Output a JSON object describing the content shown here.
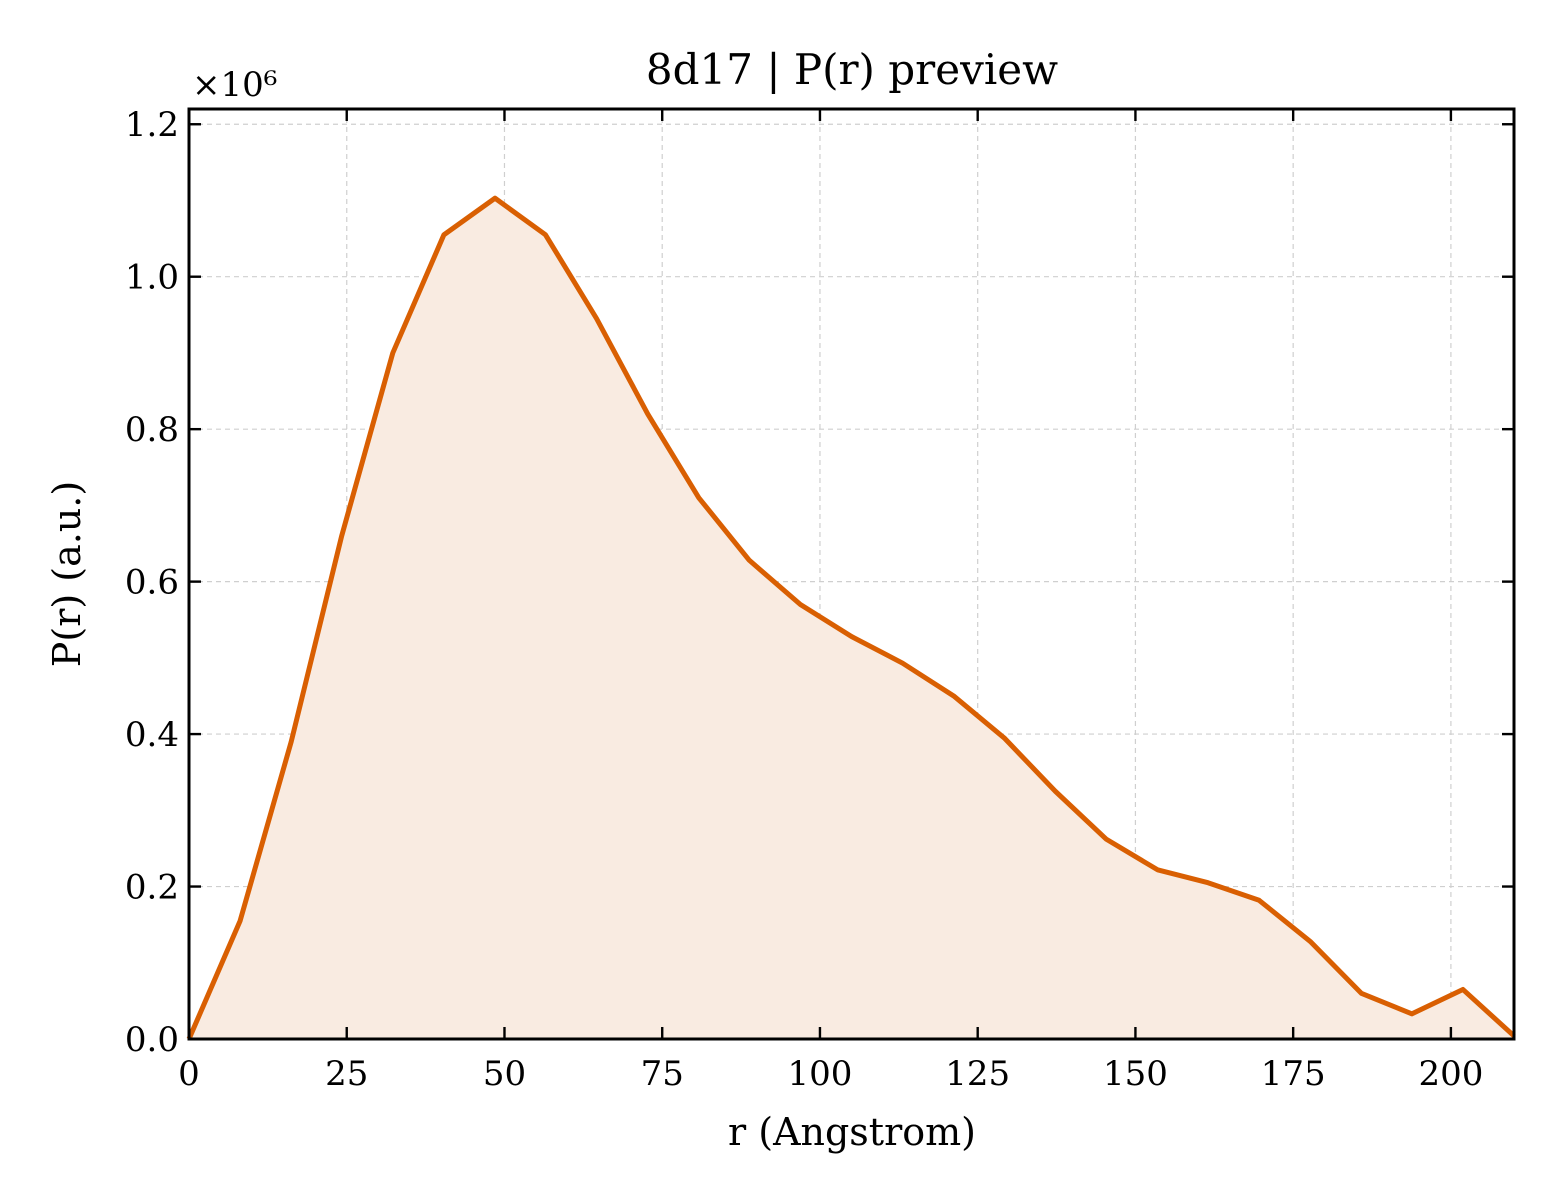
{
  "chart_data": {
    "type": "area",
    "title": "8d17 | P(r) preview",
    "xlabel": "r (Angstrom)",
    "ylabel": "P(r) (a.u.)",
    "y_multiplier_label": "×10⁶",
    "xlim": [
      0,
      210
    ],
    "ylim": [
      0,
      1.22
    ],
    "xticks": [
      0,
      25,
      50,
      75,
      100,
      125,
      150,
      175,
      200
    ],
    "yticks": [
      0.0,
      0.2,
      0.4,
      0.6,
      0.8,
      1.0,
      1.2
    ],
    "xtick_labels": [
      "0",
      "25",
      "50",
      "75",
      "100",
      "125",
      "150",
      "175",
      "200"
    ],
    "ytick_labels": [
      "0.0",
      "0.2",
      "0.4",
      "0.6",
      "0.8",
      "1.0",
      "1.2"
    ],
    "grid": true,
    "colors": {
      "line": "#d95f02",
      "fill": "#f9ebe1"
    },
    "series": [
      {
        "x": [
          0,
          8.1,
          16.2,
          24.2,
          32.3,
          40.4,
          48.5,
          56.5,
          64.6,
          72.7,
          80.8,
          88.8,
          96.9,
          105.0,
          113.1,
          121.2,
          129.2,
          137.3,
          145.4,
          153.5,
          161.5,
          169.6,
          177.7,
          185.8,
          193.8,
          201.9,
          210.0
        ],
        "y": [
          0.0,
          0.155,
          0.39,
          0.66,
          0.9,
          1.055,
          1.103,
          1.055,
          0.945,
          0.82,
          0.71,
          0.628,
          0.57,
          0.528,
          0.493,
          0.45,
          0.395,
          0.325,
          0.262,
          0.222,
          0.205,
          0.182,
          0.128,
          0.06,
          0.033,
          0.065,
          0.004
        ]
      }
    ]
  }
}
